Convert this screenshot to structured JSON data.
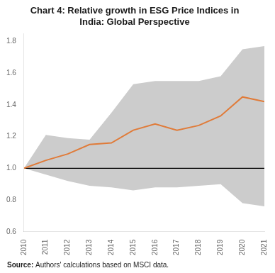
{
  "chart_data": {
    "type": "line",
    "title": "Chart 4: Relative growth in ESG Price Indices in\nIndia: Global Perspective",
    "x": [
      2010,
      2011,
      2012,
      2013,
      2014,
      2015,
      2016,
      2017,
      2018,
      2019,
      2020,
      2021
    ],
    "series": [
      {
        "values": [
          1.0,
          1.05,
          1.09,
          1.15,
          1.16,
          1.24,
          1.28,
          1.24,
          1.27,
          1.33,
          1.45,
          1.42
        ],
        "color": "#E07B39"
      }
    ],
    "band": {
      "upper": [
        1.0,
        1.21,
        1.19,
        1.18,
        1.35,
        1.53,
        1.55,
        1.55,
        1.55,
        1.58,
        1.75,
        1.77
      ],
      "lower": [
        1.0,
        0.96,
        0.92,
        0.89,
        0.88,
        0.86,
        0.88,
        0.88,
        0.89,
        0.9,
        0.78,
        0.76
      ],
      "color": "#CCCCCC"
    },
    "hline": {
      "y": 1.0,
      "color": "#000000"
    },
    "xlim": [
      2010,
      2021
    ],
    "xticks": [
      2010,
      2011,
      2012,
      2013,
      2014,
      2015,
      2016,
      2017,
      2018,
      2019,
      2020,
      2021
    ],
    "ylim": [
      0.6,
      1.85
    ],
    "yticks": [
      0.6,
      0.8,
      {
        "value": 1.0,
        "label": "1.0"
      },
      1.2,
      1.4,
      1.6,
      1.8
    ],
    "grid": false,
    "annotations": [
      "Source:",
      "Authors' calculations based on MSCI data."
    ]
  }
}
